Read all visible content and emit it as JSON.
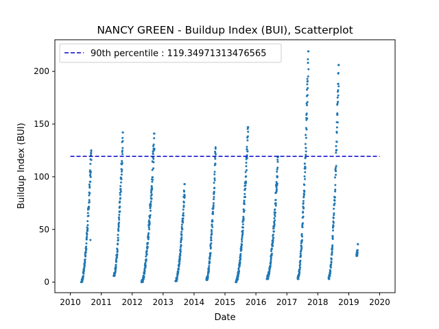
{
  "chart_data": {
    "type": "scatter",
    "title": "NANCY GREEN - Buildup Index (BUI), Scatterplot",
    "xlabel": "Date",
    "ylabel": "Buildup Index (BUI)",
    "xlim": [
      2009.5,
      2020.5
    ],
    "ylim": [
      -10,
      230
    ],
    "xticks": [
      2010,
      2011,
      2012,
      2013,
      2014,
      2015,
      2016,
      2017,
      2018,
      2019,
      2020
    ],
    "yticks": [
      0,
      50,
      100,
      150,
      200
    ],
    "grid": false,
    "legend_position": "top-left",
    "series_color": "#1f77b4",
    "reference_line": {
      "label": "90th percentile : 119.34971313476565",
      "value": 119.34971313476565,
      "x_range": [
        2010.0,
        2020.0
      ],
      "color": "#0000cc",
      "style": "dashed"
    },
    "seasons": [
      {
        "year": 2010,
        "start": 2010.35,
        "end": 2010.68,
        "min": 0,
        "peak": 125,
        "extra": [
          [
            2010.65,
            40
          ]
        ]
      },
      {
        "year": 2011,
        "start": 2011.4,
        "end": 2011.7,
        "min": 6,
        "peak": 142,
        "extra": []
      },
      {
        "year": 2012,
        "start": 2012.3,
        "end": 2012.72,
        "min": 0,
        "peak": 141,
        "extra": []
      },
      {
        "year": 2013,
        "start": 2013.4,
        "end": 2013.7,
        "min": 1,
        "peak": 93,
        "extra": []
      },
      {
        "year": 2014,
        "start": 2014.4,
        "end": 2014.7,
        "min": 2,
        "peak": 128,
        "extra": []
      },
      {
        "year": 2015,
        "start": 2015.35,
        "end": 2015.75,
        "min": 0,
        "peak": 147,
        "extra": []
      },
      {
        "year": 2016,
        "start": 2016.35,
        "end": 2016.72,
        "min": 3,
        "peak": 119,
        "extra": []
      },
      {
        "year": 2017,
        "start": 2017.35,
        "end": 2017.7,
        "min": 3,
        "peak": 219,
        "extra": []
      },
      {
        "year": 2018,
        "start": 2018.35,
        "end": 2018.68,
        "min": 3,
        "peak": 206,
        "extra": []
      },
      {
        "year": 2019,
        "start": 2019.25,
        "end": 2019.3,
        "min": 25,
        "peak": 36,
        "extra": []
      }
    ]
  }
}
